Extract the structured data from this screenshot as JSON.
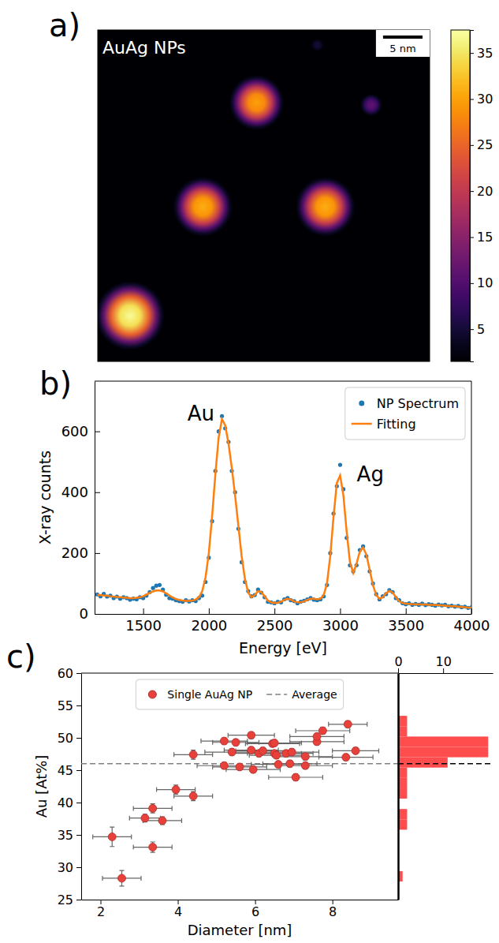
{
  "chart_data": [
    {
      "type": "image",
      "panel": "a)",
      "annotations": [
        {
          "text": "AuAg NPs"
        }
      ],
      "xlim": [
        0,
        42
      ],
      "ylim": [
        0,
        42
      ],
      "tick_labels": false,
      "background": 1.5,
      "particles": {
        "x": [
          20.1,
          34.6,
          27.8,
          13.3,
          28.8,
          4.1
        ],
        "y": [
          9.2,
          9.5,
          1.9,
          22.4,
          22.4,
          36.2
        ],
        "diameter": [
          6.0,
          2.5,
          1.5,
          6.5,
          6.5,
          7.5
        ],
        "peak": [
          30,
          11,
          5,
          31,
          31,
          37
        ]
      },
      "colorbar": {
        "range": [
          1.5,
          37.5
        ],
        "ticks": [
          5,
          10,
          15,
          20,
          25,
          30,
          35
        ]
      },
      "scale_bar": {
        "value": 5,
        "label": "5 nm"
      }
    },
    {
      "type": "line",
      "panel": "b)",
      "xlabel": "Energy [eV]",
      "ylabel": "X-ray counts",
      "xlim": [
        1130,
        4000
      ],
      "ylim": [
        0,
        765
      ],
      "xticks": [
        1500,
        2000,
        2500,
        3000,
        3500,
        4000
      ],
      "yticks": [
        0,
        200,
        400,
        600
      ],
      "legend": "upper right",
      "annotations": [
        {
          "text": "Au",
          "x": 1940,
          "y": 635
        },
        {
          "text": "Ag",
          "x": 3230,
          "y": 435
        }
      ],
      "x": [
        1150,
        1175,
        1200,
        1225,
        1250,
        1275,
        1300,
        1325,
        1350,
        1375,
        1400,
        1425,
        1450,
        1475,
        1500,
        1525,
        1550,
        1575,
        1600,
        1625,
        1650,
        1675,
        1700,
        1725,
        1750,
        1775,
        1800,
        1825,
        1850,
        1875,
        1900,
        1925,
        1950,
        1975,
        2000,
        2025,
        2050,
        2075,
        2100,
        2125,
        2150,
        2175,
        2200,
        2225,
        2250,
        2275,
        2300,
        2325,
        2350,
        2375,
        2400,
        2425,
        2450,
        2475,
        2500,
        2525,
        2550,
        2575,
        2600,
        2625,
        2650,
        2675,
        2700,
        2725,
        2750,
        2775,
        2800,
        2825,
        2850,
        2875,
        2900,
        2925,
        2950,
        2975,
        3000,
        3025,
        3050,
        3075,
        3100,
        3125,
        3150,
        3175,
        3200,
        3225,
        3250,
        3275,
        3300,
        3325,
        3350,
        3375,
        3400,
        3425,
        3450,
        3475,
        3500,
        3525,
        3550,
        3575,
        3600,
        3625,
        3650,
        3675,
        3700,
        3725,
        3750,
        3775,
        3800,
        3825,
        3850,
        3875,
        3900,
        3925,
        3950,
        3975,
        4000
      ],
      "series": [
        {
          "name": "NP Spectrum",
          "type": "scatter",
          "marker": "circle",
          "color": "#1f77b4",
          "values": [
            64,
            58,
            66,
            57,
            60,
            52,
            57,
            50,
            55,
            52,
            47,
            50,
            48,
            55,
            52,
            60,
            72,
            85,
            93,
            95,
            80,
            63,
            52,
            50,
            45,
            42,
            40,
            45,
            41,
            45,
            42,
            52,
            60,
            105,
            185,
            305,
            470,
            600,
            650,
            610,
            565,
            470,
            400,
            280,
            170,
            105,
            75,
            58,
            62,
            80,
            70,
            55,
            40,
            38,
            35,
            40,
            38,
            48,
            52,
            45,
            42,
            35,
            40,
            43,
            48,
            52,
            47,
            45,
            48,
            58,
            95,
            200,
            330,
            420,
            490,
            410,
            250,
            160,
            140,
            160,
            210,
            222,
            190,
            140,
            100,
            65,
            48,
            58,
            65,
            78,
            72,
            52,
            45,
            35,
            32,
            35,
            30,
            33,
            30,
            34,
            29,
            32,
            30,
            27,
            31,
            28,
            30,
            25,
            27,
            24,
            26,
            22,
            24,
            20,
            22
          ]
        },
        {
          "name": "Fitting",
          "type": "line",
          "line_style": "solid",
          "color": "#ff7f0e",
          "values": [
            62,
            62,
            60,
            60,
            58,
            57,
            56,
            55,
            54,
            53,
            52,
            52,
            53,
            55,
            58,
            63,
            69,
            74,
            77,
            77,
            74,
            68,
            61,
            54,
            49,
            46,
            44,
            43,
            43,
            44,
            47,
            55,
            75,
            120,
            200,
            320,
            460,
            580,
            640,
            620,
            560,
            480,
            390,
            290,
            190,
            115,
            70,
            55,
            62,
            75,
            72,
            58,
            44,
            38,
            36,
            37,
            40,
            46,
            50,
            47,
            41,
            38,
            38,
            41,
            46,
            50,
            50,
            48,
            50,
            62,
            100,
            190,
            320,
            430,
            455,
            390,
            270,
            170,
            135,
            165,
            205,
            218,
            195,
            145,
            95,
            62,
            50,
            55,
            68,
            76,
            70,
            55,
            42,
            36,
            34,
            33,
            32,
            32,
            31,
            31,
            31,
            30,
            30,
            29,
            29,
            28,
            27,
            26,
            25,
            25,
            24,
            23,
            22,
            21,
            20
          ]
        }
      ]
    },
    {
      "type": "scatter",
      "panel": "c)",
      "xlabel": "Diameter [nm]",
      "ylabel": "Au [At%]",
      "xlim": [
        1.5,
        9.7
      ],
      "ylim": [
        25,
        60
      ],
      "xticks": [
        2,
        4,
        6,
        8
      ],
      "yticks": [
        25,
        30,
        35,
        40,
        45,
        50,
        55,
        60
      ],
      "legend": "upper center",
      "series": [
        {
          "name": "Single AuAg NP",
          "type": "scatter",
          "marker": "circle",
          "color": "#e8403a",
          "x": [
            2.55,
            2.3,
            3.35,
            3.15,
            3.35,
            3.6,
            3.95,
            4.4,
            4.4,
            5.2,
            5.5,
            5.9,
            5.2,
            5.4,
            5.6,
            5.95,
            5.9,
            6.1,
            6.2,
            6.45,
            6.5,
            6.5,
            6.55,
            6.6,
            6.8,
            6.9,
            6.95,
            7.05,
            7.3,
            7.3,
            7.6,
            7.6,
            7.75,
            8.35,
            8.4,
            8.6
          ],
          "values": [
            28.3,
            34.7,
            33.1,
            37.6,
            39.1,
            37.2,
            42.0,
            41.0,
            47.4,
            49.5,
            49.3,
            50.4,
            45.7,
            47.8,
            45.5,
            45.1,
            48.1,
            47.6,
            48.0,
            49.1,
            49.2,
            47.6,
            47.3,
            45.9,
            47.6,
            46.0,
            47.8,
            43.9,
            45.7,
            47.1,
            49.4,
            50.2,
            51.1,
            47.0,
            52.1,
            48.0
          ],
          "x_error": [
            0.5,
            0.5,
            0.5,
            0.4,
            0.5,
            0.5,
            0.5,
            0.5,
            0.5,
            0.6,
            0.6,
            0.6,
            0.7,
            0.7,
            0.7,
            0.7,
            0.7,
            0.7,
            0.7,
            0.7,
            0.7,
            0.7,
            0.7,
            0.7,
            0.7,
            0.7,
            0.7,
            0.7,
            0.7,
            0.7,
            0.7,
            0.7,
            0.7,
            0.7,
            0.5,
            0.6
          ],
          "y_error": [
            1.2,
            1.5,
            0.8,
            0.6,
            0.7,
            0.6,
            0.7,
            0.7,
            0.7,
            0.5,
            0.5,
            0.5,
            0.5,
            0.5,
            0.5,
            0.5,
            0.5,
            0.5,
            0.5,
            0.5,
            0.5,
            0.5,
            0.5,
            0.5,
            0.5,
            0.5,
            0.5,
            0.5,
            0.5,
            0.5,
            0.5,
            0.5,
            0.5,
            0.5,
            0.5,
            0.5
          ]
        },
        {
          "name": "Average",
          "type": "hline",
          "line_style": "dashed",
          "color": "#808080",
          "values": [
            46
          ]
        }
      ]
    },
    {
      "type": "histogram",
      "orientation": "horizontal",
      "color": "#ff4d4d",
      "bins": [
        27.8,
        29.4,
        31.0,
        32.6,
        34.2,
        35.8,
        37.4,
        39.0,
        40.6,
        42.2,
        43.8,
        45.4,
        47.0,
        48.6,
        50.2,
        51.8,
        53.4
      ],
      "counts": [
        1,
        0,
        0,
        0,
        0,
        2,
        2,
        0,
        2,
        2,
        2,
        11,
        20,
        20,
        2,
        2
      ],
      "xlim": [
        0,
        21
      ],
      "xticks": [
        0,
        10
      ],
      "ylim": [
        25,
        60
      ],
      "tick_labels": "x"
    }
  ]
}
